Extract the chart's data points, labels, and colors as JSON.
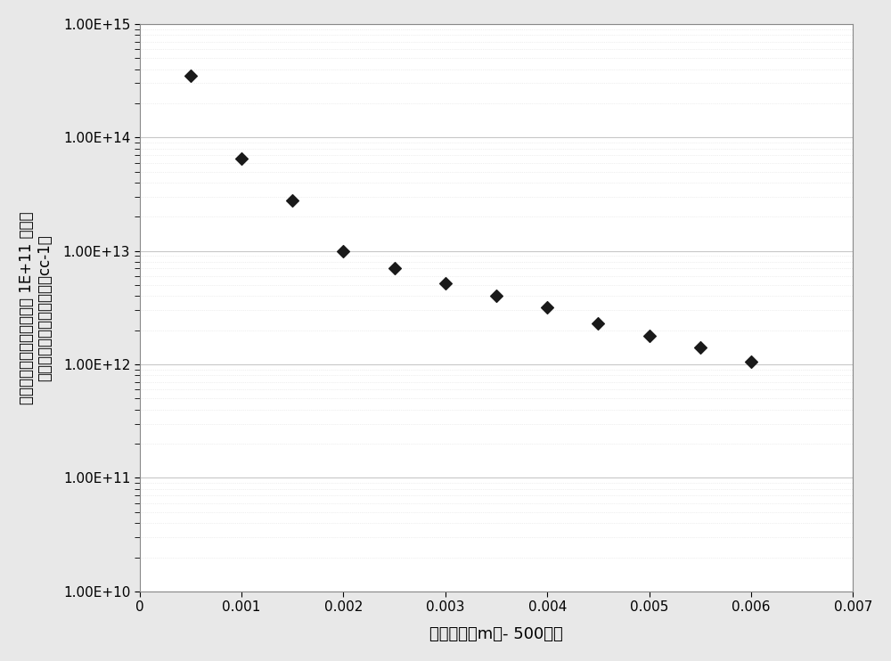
{
  "x": [
    0.0005,
    0.001,
    0.0015,
    0.002,
    0.0025,
    0.003,
    0.0035,
    0.004,
    0.0045,
    0.005,
    0.0055,
    0.006
  ],
  "y": [
    350000000000000.0,
    65000000000000.0,
    28000000000000.0,
    10000000000000.0,
    7000000000000.0,
    5200000000000.0,
    4000000000000.0,
    3200000000000.0,
    2300000000000.0,
    1800000000000.0,
    1400000000000.0,
    1050000000000.0
  ],
  "xlabel": "管孔直径（m）- 500个孔",
  "ylabel_lines": [
    "上室中所需的、针对下室中 1E+11 的离子",
    "密度的、源中的离子密度（cc-1）"
  ],
  "xlim": [
    0,
    0.007
  ],
  "ylim_log": [
    10000000000.0,
    1000000000000000.0
  ],
  "xticks": [
    0,
    0.001,
    0.002,
    0.003,
    0.004,
    0.005,
    0.006,
    0.007
  ],
  "yticks": [
    10000000000.0,
    100000000000.0,
    1000000000000.0,
    10000000000000.0,
    100000000000000.0,
    1000000000000000.0
  ],
  "ytick_labels": [
    "1.00E+10",
    "1.00E+11",
    "1.00E+12",
    "1.00E+13",
    "1.00E+14",
    "1.00E+15"
  ],
  "marker": "D",
  "marker_color": "#1a1a1a",
  "marker_size": 7,
  "outer_bg_color": "#e8e8e8",
  "plot_bg_color": "#ffffff",
  "grid_color": "#c8c8c8",
  "minor_grid_color": "#e0e0e0",
  "font_size_ticks": 11,
  "font_size_labels": 13,
  "font_size_ylabel": 12
}
